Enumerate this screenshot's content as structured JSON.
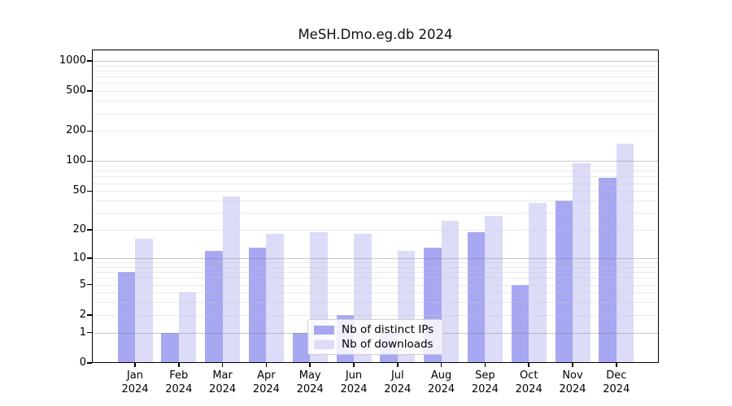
{
  "chart_data": {
    "type": "bar",
    "title": "MeSH.Dmo.eg.db 2024",
    "categories": [
      "Jan",
      "Feb",
      "Mar",
      "Apr",
      "May",
      "Jun",
      "Jul",
      "Aug",
      "Sep",
      "Oct",
      "Nov",
      "Dec"
    ],
    "x_sublabel": "2024",
    "series": [
      {
        "name": "Nb of distinct IPs",
        "color": "#a7a7f2",
        "values": [
          7,
          1,
          12,
          13,
          1,
          2,
          1,
          13,
          19,
          5,
          40,
          68
        ]
      },
      {
        "name": "Nb of downloads",
        "color": "#dcdcf8",
        "values": [
          16,
          4,
          44,
          18,
          19,
          18,
          12,
          25,
          28,
          38,
          95,
          150
        ]
      }
    ],
    "yscale": "log1p",
    "yticks": [
      0,
      1,
      2,
      5,
      10,
      20,
      50,
      100,
      200,
      500,
      1000
    ],
    "ylim": [
      0,
      1300
    ],
    "xlabel": "",
    "ylabel": "",
    "grid": "on",
    "legend_position": "inside-bottom-center",
    "axis_color": "#000000",
    "grid_major_color": "#c9c9c9",
    "grid_minor_color": "#ececec",
    "background_color": "#ffffff"
  }
}
